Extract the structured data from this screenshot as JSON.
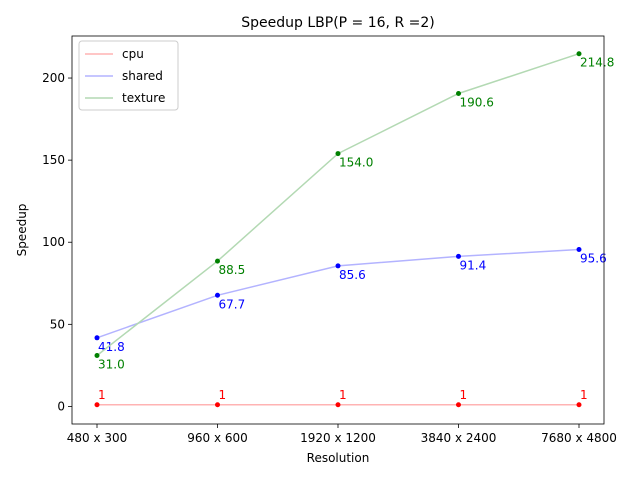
{
  "chart_data": {
    "type": "line",
    "title": "Speedup LBP(P = 16, R =2)",
    "xlabel": "Resolution",
    "ylabel": "Speedup",
    "categories": [
      "480 x 300",
      "960 x 600",
      "1920 x 1200",
      "3840 x 2400",
      "7680 x 4800"
    ],
    "ylim": [
      -10.7,
      225.6
    ],
    "yticks": [
      0,
      50,
      100,
      150,
      200
    ],
    "grid": false,
    "legend_position": "top-left",
    "series": [
      {
        "name": "cpu",
        "color": "#ff0000",
        "values": [
          1,
          1,
          1,
          1,
          1
        ],
        "labels": [
          "1",
          "1",
          "1",
          "1",
          "1"
        ],
        "label_position": "above"
      },
      {
        "name": "shared",
        "color": "#0000ff",
        "values": [
          41.8,
          67.7,
          85.6,
          91.4,
          95.6
        ],
        "labels": [
          "41.8",
          "67.7",
          "85.6",
          "91.4",
          "95.6"
        ],
        "label_position": "below"
      },
      {
        "name": "texture",
        "color": "#008000",
        "values": [
          31.0,
          88.5,
          154.0,
          190.6,
          214.8
        ],
        "labels": [
          "31.0",
          "88.5",
          "154.0",
          "190.6",
          "214.8"
        ],
        "label_position": "below"
      }
    ]
  }
}
